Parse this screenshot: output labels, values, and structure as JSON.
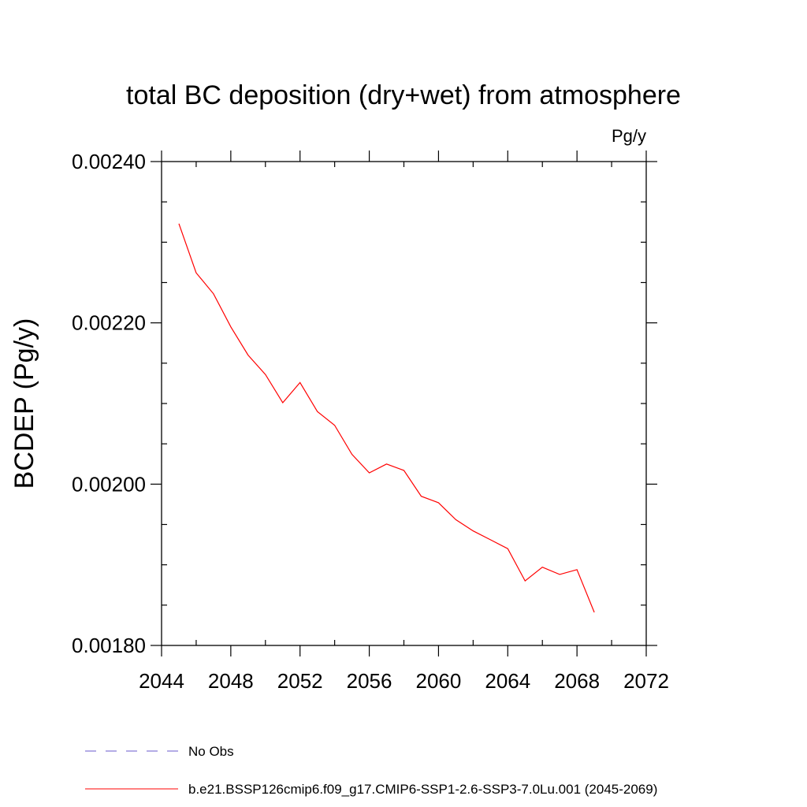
{
  "chart_data": {
    "type": "line",
    "title": "total BC deposition (dry+wet) from atmosphere",
    "units": "Pg/y",
    "ylabel": "BCDEP  (Pg/y)",
    "xlim": [
      2044,
      2072
    ],
    "ylim": [
      0.0018,
      0.0024
    ],
    "x_ticks": [
      2044,
      2048,
      2052,
      2056,
      2060,
      2064,
      2068,
      2072
    ],
    "x_tick_labels": [
      "2044",
      "2048",
      "2052",
      "2056",
      "2060",
      "2064",
      "2068",
      "2072"
    ],
    "y_ticks": [
      0.0018,
      0.002,
      0.0022,
      0.0024
    ],
    "y_tick_labels": [
      "0.00180",
      "0.00200",
      "0.00220",
      "0.00240"
    ],
    "grid": false,
    "legend_position": "bottom",
    "series": [
      {
        "name": "b.e21.BSSP126cmip6.f09_g17.CMIP6-SSP1-2.6-SSP3-7.0Lu.001 (2045-2069)",
        "color": "#ff0000",
        "style": "solid",
        "x": [
          2045,
          2046,
          2047,
          2048,
          2049,
          2050,
          2051,
          2052,
          2053,
          2054,
          2055,
          2056,
          2057,
          2058,
          2059,
          2060,
          2061,
          2062,
          2063,
          2064,
          2065,
          2066,
          2067,
          2068,
          2069
        ],
        "y": [
          0.002323,
          0.002262,
          0.002236,
          0.002195,
          0.00216,
          0.002136,
          0.002101,
          0.002126,
          0.00209,
          0.002073,
          0.002037,
          0.002014,
          0.002025,
          0.002017,
          0.001985,
          0.001977,
          0.001956,
          0.001942,
          0.001931,
          0.00192,
          0.00188,
          0.001897,
          0.001888,
          0.001894,
          0.001841
        ]
      },
      {
        "name": "No Obs",
        "color": "#6a5acd",
        "style": "dashed",
        "x": [],
        "y": []
      }
    ]
  }
}
